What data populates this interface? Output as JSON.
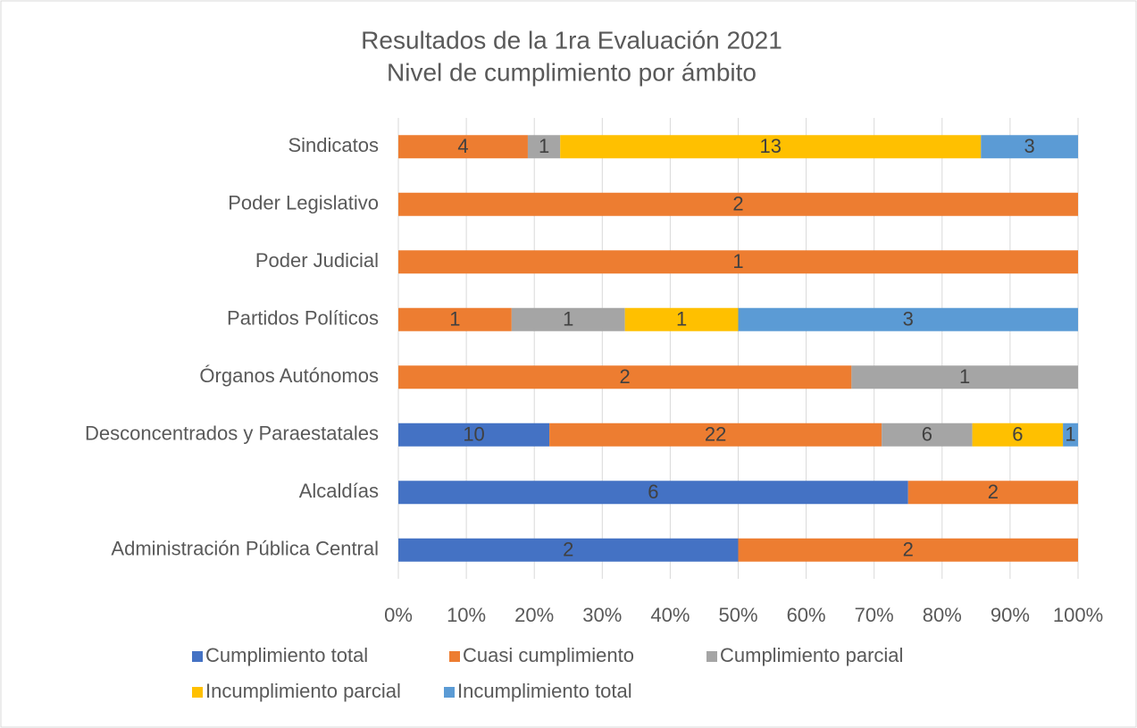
{
  "chart_data": {
    "type": "bar",
    "orientation": "horizontal",
    "stacking": "percent",
    "title": "Resultados de la 1ra Evaluación 2021",
    "subtitle": "Nivel de cumplimiento por ámbito",
    "categories": [
      "Sindicatos",
      "Poder Legislativo",
      "Poder Judicial",
      "Partidos Políticos",
      "Órganos Autónomos",
      "Desconcentrados y Paraestatales",
      "Alcaldías",
      "Administración Pública Central"
    ],
    "series": [
      {
        "name": "Cumplimiento total",
        "color": "#4472c4",
        "values": [
          null,
          null,
          null,
          null,
          null,
          10,
          6,
          2
        ]
      },
      {
        "name": "Cuasi cumplimiento",
        "color": "#ed7d31",
        "values": [
          4,
          2,
          1,
          1,
          2,
          22,
          2,
          2
        ]
      },
      {
        "name": "Cumplimiento parcial",
        "color": "#a5a5a5",
        "values": [
          1,
          null,
          null,
          1,
          1,
          6,
          null,
          null
        ]
      },
      {
        "name": "Incumplimiento parcial",
        "color": "#ffc000",
        "values": [
          13,
          null,
          null,
          1,
          null,
          6,
          null,
          null
        ]
      },
      {
        "name": "Incumplimiento total",
        "color": "#5b9bd5",
        "values": [
          3,
          null,
          null,
          3,
          null,
          1,
          null,
          null
        ]
      }
    ],
    "xlim": [
      0,
      100
    ],
    "xticks": [
      {
        "value": 0,
        "label": "0%"
      },
      {
        "value": 10,
        "label": "10%"
      },
      {
        "value": 20,
        "label": "20%"
      },
      {
        "value": 30,
        "label": "30%"
      },
      {
        "value": 40,
        "label": "40%"
      },
      {
        "value": 50,
        "label": "50%"
      },
      {
        "value": 60,
        "label": "60%"
      },
      {
        "value": 70,
        "label": "70%"
      },
      {
        "value": 80,
        "label": "80%"
      },
      {
        "value": 90,
        "label": "90%"
      },
      {
        "value": 100,
        "label": "100%"
      }
    ],
    "grid": true,
    "legend": "bottom"
  }
}
